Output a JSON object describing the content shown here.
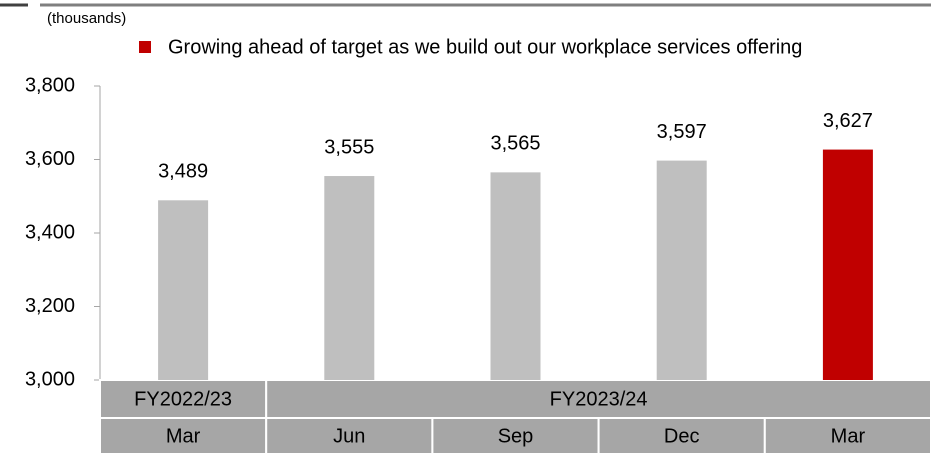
{
  "chart_data": {
    "type": "bar",
    "unit_label": "(thousands)",
    "categories": [
      "Mar",
      "Jun",
      "Sep",
      "Dec",
      "Mar"
    ],
    "groups": [
      {
        "name": "FY2022/23",
        "count": 1
      },
      {
        "name": "FY2023/24",
        "count": 4
      }
    ],
    "series": [
      {
        "name": "Growing ahead of target as we build out our workplace services offering",
        "color": "#c00000",
        "values": [
          3489,
          3555,
          3565,
          3597,
          3627
        ],
        "value_labels": [
          "3,489",
          "3,555",
          "3,565",
          "3,597",
          "3,627"
        ],
        "colors": [
          "#bfbfbf",
          "#bfbfbf",
          "#bfbfbf",
          "#bfbfbf",
          "#c00000"
        ]
      }
    ],
    "ylim": [
      3000,
      3800
    ],
    "yticks": [
      {
        "value": 3000,
        "label": "3,000"
      },
      {
        "value": 3200,
        "label": "3,200"
      },
      {
        "value": 3400,
        "label": "3,400"
      },
      {
        "value": 3600,
        "label": "3,600"
      },
      {
        "value": 3800,
        "label": "3,800"
      }
    ],
    "grid": false,
    "legend": "top"
  }
}
